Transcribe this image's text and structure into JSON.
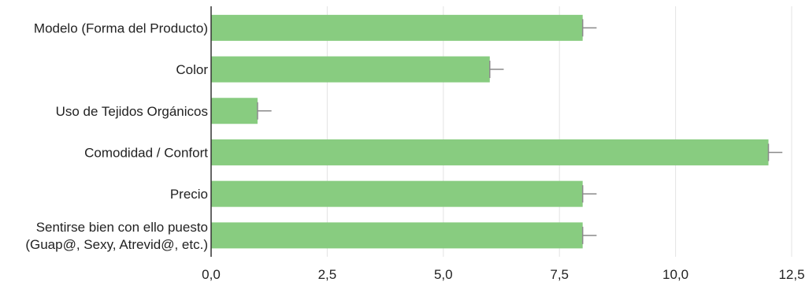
{
  "chart_data": {
    "type": "bar",
    "orientation": "horizontal",
    "categories": [
      [
        "Modelo (Forma del Producto)"
      ],
      [
        "Color"
      ],
      [
        "Uso de Tejidos Orgánicos"
      ],
      [
        "Comodidad / Confort"
      ],
      [
        "Precio"
      ],
      [
        "Sentirse bien con ello puesto",
        "(Guap@, Sexy, Atrevid@, etc.)"
      ]
    ],
    "values": [
      8,
      6,
      1,
      12,
      8,
      8
    ],
    "error_upper": [
      8.3,
      6.3,
      1.3,
      12.3,
      8.3,
      8.3
    ],
    "xlim": [
      0,
      12.5
    ],
    "x_ticks": [
      0,
      2.5,
      5,
      7.5,
      10,
      12.5
    ],
    "x_tick_labels": [
      "0,0",
      "2,5",
      "5,0",
      "7,5",
      "10,0",
      "12,5"
    ],
    "bar_color": "#88cc80",
    "error_color": "#8a8a8a",
    "grid": true,
    "title": "",
    "xlabel": "",
    "ylabel": ""
  }
}
